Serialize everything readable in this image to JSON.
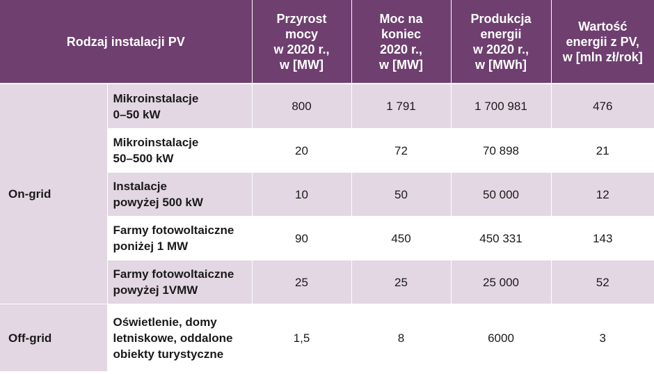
{
  "header": {
    "type_label": "Rodzaj instalacji PV",
    "col_growth": "Przyrost\nmocy\nw 2020 r.,\nw [MW]",
    "col_capacity": "Moc na\nkoniec\n2020 r.,\nw [MW]",
    "col_production": "Produkcja\nenergii\nw 2020 r.,\nw [MWh]",
    "col_value": "Wartość\nenergii z PV,\nw [mln zł/rok]"
  },
  "groups": {
    "on_grid": "On-grid",
    "off_grid": "Off-grid"
  },
  "rows": [
    {
      "type": "Mikroinstalacje\n0–50 kW",
      "growth": "800",
      "capacity": "1 791",
      "production": "1 700 981",
      "value": "476"
    },
    {
      "type": "Mikroinstalacje\n50–500 kW",
      "growth": "20",
      "capacity": "72",
      "production": "70 898",
      "value": "21"
    },
    {
      "type": "Instalacje\npowyżej 500 kW",
      "growth": "10",
      "capacity": "50",
      "production": "50 000",
      "value": "12"
    },
    {
      "type": "Farmy fotowoltaiczne\nponiżej 1 MW",
      "growth": "90",
      "capacity": "450",
      "production": "450 331",
      "value": "143"
    },
    {
      "type": "Farmy fotowoltaiczne\npowyżej 1VMW",
      "growth": "25",
      "capacity": "25",
      "production": "25 000",
      "value": "52"
    },
    {
      "type": "Oświetlenie, domy\nletniskowe, oddalone\nobiekty turystyczne",
      "growth": "1,5",
      "capacity": "8",
      "production": "6000",
      "value": "3"
    }
  ],
  "colors": {
    "header_bg": "#6e3f6f",
    "shaded_row_bg": "#e3d7e3",
    "plain_row_bg": "#ffffff"
  }
}
